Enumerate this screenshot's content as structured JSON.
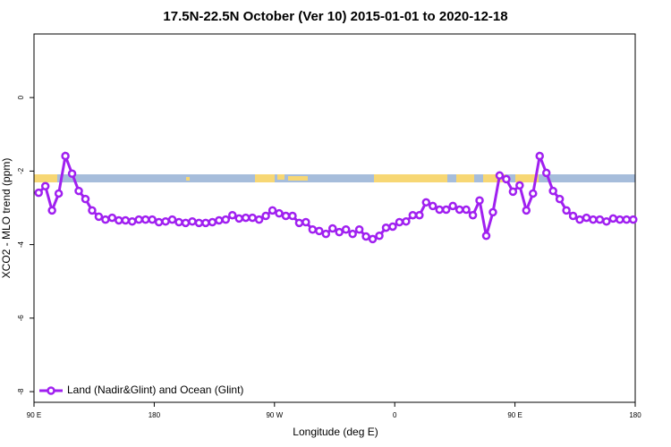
{
  "chart_data": {
    "type": "line",
    "title": "17.5N-22.5N October (Ver 10)   2015-01-01 to 2020-12-18",
    "xlabel": "Longitude (deg E)",
    "ylabel": "XCO2 - MLO trend (ppm)",
    "xlim": [
      90,
      540
    ],
    "ylim": [
      -8.29,
      1.73
    ],
    "xticks": [
      {
        "value": 90,
        "label": "90 E"
      },
      180,
      {
        "value": 270,
        "label": "90 W"
      },
      {
        "value": 360,
        "label": "0"
      },
      {
        "value": 450,
        "label": "90 E"
      },
      {
        "value": 540,
        "label": "180"
      }
    ],
    "yticks": [
      0,
      -2,
      -4,
      -6,
      -8
    ],
    "legend": "bottomleft",
    "x": [
      93.5,
      98.5,
      103.5,
      108.5,
      113.5,
      118.5,
      123.5,
      128.5,
      133.5,
      138.5,
      143.5,
      148.5,
      153.5,
      158.5,
      163.5,
      168.5,
      173.5,
      178.5,
      183.5,
      188.5,
      193.5,
      198.5,
      203.5,
      208.5,
      213.5,
      218.5,
      223.5,
      228.5,
      233.5,
      238.5,
      243.5,
      248.5,
      253.5,
      258.5,
      263.5,
      268.5,
      273.5,
      278.5,
      283.5,
      288.5,
      293.5,
      298.5,
      303.5,
      308.5,
      313.5,
      318.5,
      323.5,
      328.5,
      333.5,
      338.5,
      343.5,
      348.5,
      353.5,
      358.5,
      363.5,
      368.5,
      373.5,
      378.5,
      383.5,
      388.5,
      393.5,
      398.5,
      403.5,
      408.5,
      413.5,
      418.5,
      423.5,
      428.5,
      433.5,
      438.5,
      443.5,
      448.5,
      453.5,
      458.5,
      463.5,
      468.5,
      473.5,
      478.5,
      483.5,
      488.5,
      493.5,
      498.5,
      503.5,
      508.5,
      513.5,
      518.5,
      523.5,
      528.5,
      533.5,
      538.5
    ],
    "series": [
      {
        "name": "Land (Nadir&Glint) and Ocean (Glint)",
        "color": "#a020f0",
        "values": [
          -2.59,
          -2.41,
          -3.07,
          -2.61,
          -1.59,
          -2.07,
          -2.54,
          -2.76,
          -3.07,
          -3.24,
          -3.32,
          -3.27,
          -3.34,
          -3.34,
          -3.37,
          -3.32,
          -3.32,
          -3.32,
          -3.39,
          -3.37,
          -3.32,
          -3.39,
          -3.41,
          -3.37,
          -3.41,
          -3.41,
          -3.39,
          -3.34,
          -3.32,
          -3.2,
          -3.29,
          -3.27,
          -3.27,
          -3.32,
          -3.22,
          -3.07,
          -3.15,
          -3.22,
          -3.22,
          -3.41,
          -3.39,
          -3.59,
          -3.63,
          -3.71,
          -3.56,
          -3.66,
          -3.59,
          -3.71,
          -3.59,
          -3.78,
          -3.85,
          -3.76,
          -3.54,
          -3.51,
          -3.39,
          -3.37,
          -3.2,
          -3.2,
          -2.85,
          -2.95,
          -3.05,
          -3.05,
          -2.95,
          -3.05,
          -3.05,
          -3.2,
          -2.8,
          -3.76,
          -3.12,
          -2.12,
          -2.22,
          -2.56,
          -2.39,
          -3.07,
          -2.61,
          -1.59,
          -2.05,
          -2.54,
          -2.76,
          -3.07,
          -3.22,
          -3.32,
          -3.27,
          -3.32,
          -3.32,
          -3.37,
          -3.29,
          -3.32,
          -3.32,
          -3.32
        ]
      }
    ]
  }
}
